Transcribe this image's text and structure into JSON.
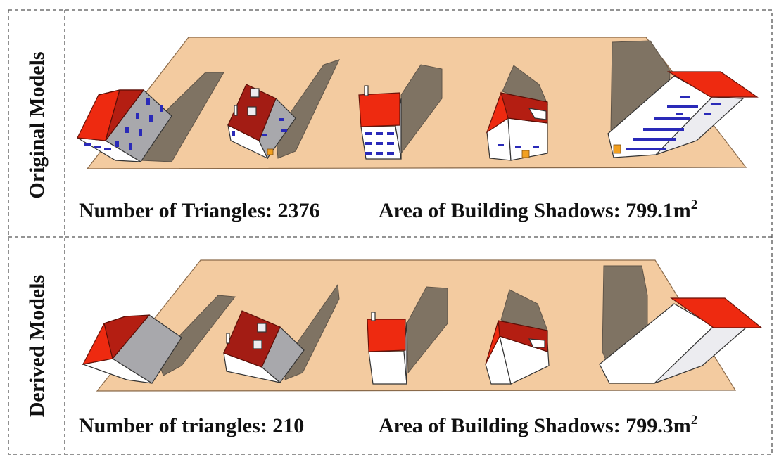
{
  "rows": [
    {
      "label": "Original Models",
      "triangles_text": "Number of Triangles:  2376",
      "shadow_text": "Area of Building  Shadows:  799.1m",
      "shadow_unit_sup": "2"
    },
    {
      "label": "Derived Models",
      "triangles_text": "Number of triangles:  210",
      "shadow_text": "Area of Building  Shadows:  799.3m",
      "shadow_unit_sup": "2"
    }
  ],
  "colors": {
    "ground": "#f3cba0",
    "shadow": "#7f7363",
    "roof_red": "#ee2a10",
    "roof_dark": "#b41e12",
    "wall_gray": "#a8a8ac",
    "window_blue": "#2a2ab8",
    "door_orange": "#f2a020"
  }
}
